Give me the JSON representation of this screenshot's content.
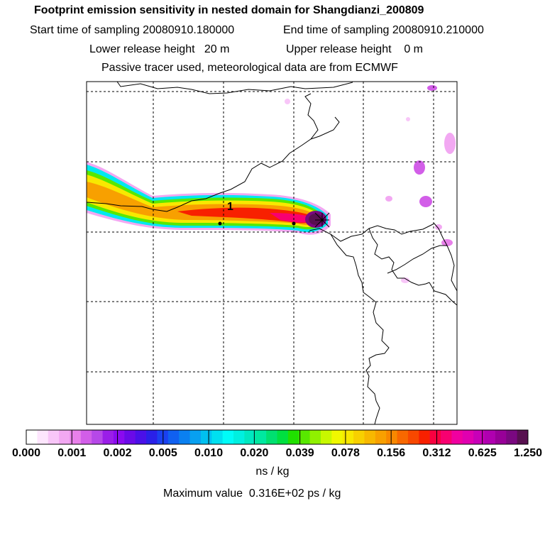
{
  "header": {
    "title": "Footprint emission sensitivity in nested domain for Shangdianzi_200809",
    "start_time": "Start time of sampling 20080910.180000",
    "end_time": "End time of sampling 20080910.210000",
    "lower_height": "Lower release height   20 m",
    "upper_height": "Upper release height    0 m",
    "tracer_note": "Passive tracer used, meteorological data are from ECMWF"
  },
  "map": {
    "marker_label": "1"
  },
  "colorbar": {
    "labels": [
      "0.000",
      "0.001",
      "0.002",
      "0.005",
      "0.010",
      "0.020",
      "0.039",
      "0.078",
      "0.156",
      "0.312",
      "0.625",
      "1.250"
    ],
    "colors": [
      "#ffffff",
      "#fde6fd",
      "#f8c6f8",
      "#f2a8f2",
      "#e880ea",
      "#d25ee8",
      "#b648e8",
      "#9a1ee8",
      "#8a0af0",
      "#6a0ae8",
      "#4a10e8",
      "#2a20e8",
      "#1a40f0",
      "#1060f0",
      "#0a80f0",
      "#08a0f0",
      "#00c0f0",
      "#00e0f0",
      "#00fcf8",
      "#00f0e0",
      "#00e8c0",
      "#00e8a0",
      "#00e070",
      "#00e040",
      "#20e000",
      "#58e800",
      "#90f000",
      "#c8f800",
      "#f0f800",
      "#f8e800",
      "#f8d000",
      "#f8b800",
      "#f8a000",
      "#f88800",
      "#f86800",
      "#f84800",
      "#f82000",
      "#f80040",
      "#f80070",
      "#f000a0",
      "#e000b0",
      "#c800b8",
      "#b000b0",
      "#980098",
      "#7a0880",
      "#581050"
    ],
    "units": "ns / kg",
    "max_value": "Maximum value  0.316E+02 ps / kg"
  }
}
